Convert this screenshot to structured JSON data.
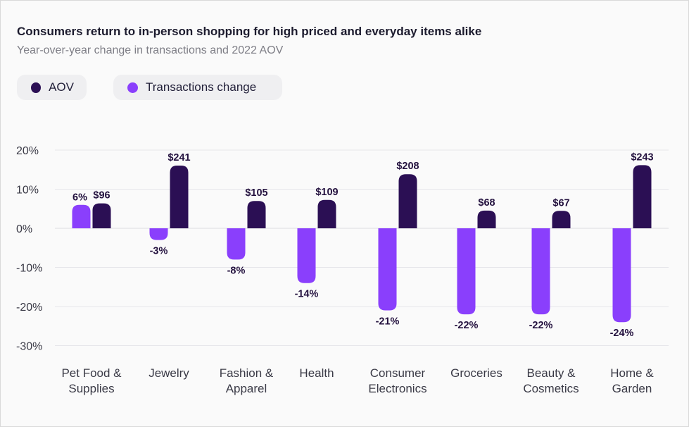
{
  "title": "Consumers return to in-person shopping for high priced and everyday items alike",
  "subtitle": "Year-over-year change in transactions and 2022 AOV",
  "legend": [
    {
      "label": "AOV",
      "color": "#2b0f54"
    },
    {
      "label": "Transactions change",
      "color": "#8a3ffc"
    }
  ],
  "chart_data": {
    "type": "bar",
    "title": "Consumers return to in-person shopping for high priced and everyday items alike",
    "subtitle": "Year-over-year change in transactions and 2022 AOV",
    "categories": [
      [
        "Pet Food &",
        "Supplies"
      ],
      [
        "Jewelry"
      ],
      [
        "Fashion &",
        "Apparel"
      ],
      [
        "Health"
      ],
      [
        "Consumer",
        "Electronics"
      ],
      [
        "Groceries"
      ],
      [
        "Beauty &",
        "Cosmetics"
      ],
      [
        "Home &",
        "Garden"
      ]
    ],
    "ylim": [
      -30,
      20
    ],
    "yticks": [
      20,
      10,
      0,
      -10,
      -20,
      -30
    ],
    "ytick_labels": [
      "20%",
      "10%",
      "0%",
      "-10%",
      "-20%",
      "-30%"
    ],
    "grid": true,
    "legend_position": "top-left",
    "series": [
      {
        "name": "Transactions change",
        "color": "#8a3ffc",
        "values": [
          6,
          -3,
          -8,
          -14,
          -21,
          -22,
          -22,
          -24
        ],
        "labels": [
          "6%",
          "-3%",
          "-8%",
          "-14%",
          "-21%",
          "-22%",
          "-22%",
          "-24%"
        ]
      },
      {
        "name": "AOV",
        "color": "#2b0f54",
        "values": [
          96,
          241,
          105,
          109,
          208,
          68,
          67,
          243
        ],
        "labels": [
          "$96",
          "$241",
          "$105",
          "$109",
          "$208",
          "$68",
          "$67",
          "$243"
        ]
      }
    ]
  }
}
